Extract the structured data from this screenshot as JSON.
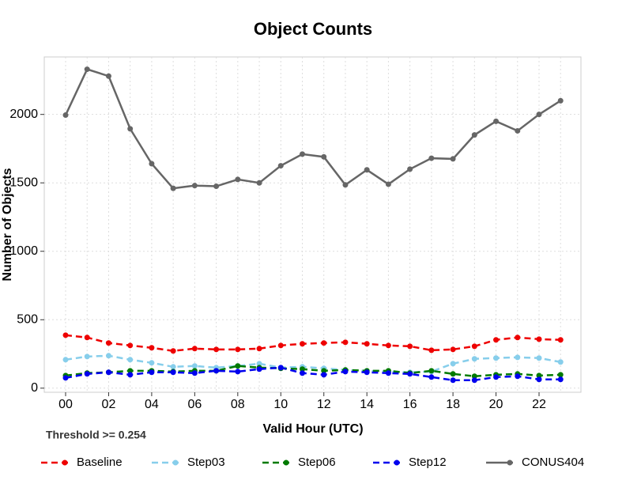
{
  "chart_data": {
    "type": "line",
    "title": "Object Counts",
    "xlabel": "Valid Hour (UTC)",
    "ylabel": "Number of Objects",
    "annotation": "Threshold >= 0.254",
    "categories": [
      "00",
      null,
      "02",
      null,
      "04",
      null,
      "06",
      null,
      "08",
      null,
      "10",
      null,
      "12",
      null,
      "14",
      null,
      "16",
      null,
      "18",
      null,
      "20",
      null,
      "22",
      null
    ],
    "ylim": [
      -30,
      2420
    ],
    "yticks": [
      0,
      500,
      1000,
      1500,
      2000
    ],
    "grid": true,
    "legend": "bottom",
    "series": [
      {
        "name": "Baseline",
        "color": "#ee0000",
        "dashed": true,
        "values": [
          387,
          370,
          330,
          312,
          295,
          272,
          289,
          283,
          283,
          289,
          312,
          324,
          330,
          335,
          324,
          312,
          306,
          277,
          283,
          306,
          353,
          370,
          358,
          353
        ]
      },
      {
        "name": "Step03",
        "color": "#87ceeb",
        "dashed": true,
        "values": [
          208,
          231,
          237,
          208,
          185,
          156,
          162,
          150,
          162,
          179,
          150,
          156,
          145,
          133,
          127,
          121,
          116,
          121,
          179,
          214,
          220,
          225,
          220,
          191
        ]
      },
      {
        "name": "Step06",
        "color": "#007a00",
        "dashed": true,
        "values": [
          92,
          110,
          116,
          127,
          127,
          121,
          127,
          127,
          162,
          150,
          145,
          139,
          127,
          133,
          127,
          127,
          110,
          127,
          104,
          87,
          98,
          104,
          92,
          98
        ]
      },
      {
        "name": "Step12",
        "color": "#0000ee",
        "dashed": true,
        "values": [
          75,
          104,
          116,
          98,
          116,
          116,
          110,
          127,
          121,
          139,
          150,
          110,
          98,
          121,
          116,
          110,
          104,
          81,
          58,
          58,
          81,
          87,
          64,
          64
        ]
      },
      {
        "name": "CONUS404",
        "color": "#666666",
        "dashed": false,
        "values": [
          1995,
          2330,
          2280,
          1895,
          1640,
          1460,
          1480,
          1475,
          1525,
          1500,
          1625,
          1710,
          1690,
          1485,
          1595,
          1490,
          1600,
          1680,
          1675,
          1850,
          1950,
          1880,
          2000,
          2100
        ]
      }
    ]
  }
}
